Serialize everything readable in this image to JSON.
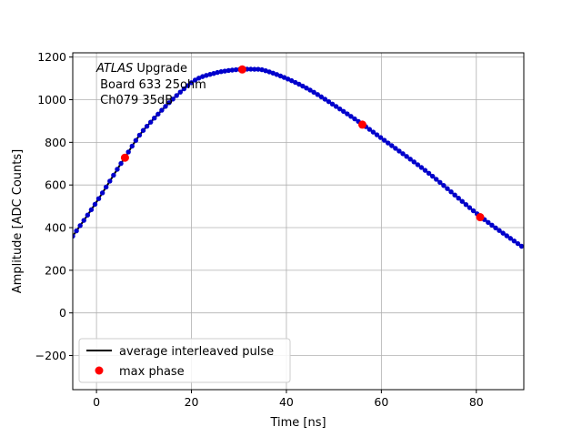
{
  "chart_data": {
    "type": "scatter",
    "xlabel": "Time [ns]",
    "ylabel": "Amplitude [ADC Counts]",
    "xlim": [
      -5,
      90
    ],
    "ylim": [
      -360,
      1220
    ],
    "xticks": [
      0,
      20,
      40,
      60,
      80
    ],
    "yticks": [
      -200,
      0,
      200,
      400,
      600,
      800,
      1000,
      1200
    ],
    "grid": true,
    "annotation": {
      "italic": "ATLAS",
      "line1_rest": " Upgrade",
      "line2": " Board 633 25ohm",
      "line3": " Ch079 35dB"
    },
    "legend": {
      "placement": "lower-left",
      "entries": [
        {
          "label": "average interleaved pulse",
          "marker": "line",
          "color": "#000000"
        },
        {
          "label": "max phase",
          "marker": "dot",
          "color": "#ff0000"
        }
      ]
    },
    "series": [
      {
        "name": "average interleaved pulse",
        "kind": "line+points",
        "color": "#000000",
        "point_color": "#0000cc",
        "x_start": -5,
        "x_end": 90,
        "x_step": 0.78125,
        "anchors": {
          "x": [
            -5,
            0,
            6,
            10,
            20,
            25,
            30,
            33,
            35,
            40,
            45,
            50,
            56,
            60,
            70,
            81,
            90
          ],
          "y": [
            360,
            520,
            730,
            860,
            1080,
            1125,
            1142,
            1143,
            1140,
            1100,
            1045,
            975,
            885,
            820,
            655,
            450,
            305
          ]
        }
      },
      {
        "name": "max phase",
        "kind": "points",
        "color": "#ff0000",
        "x": [
          6,
          30.7,
          56,
          80.8
        ],
        "y": [
          728,
          1142,
          883,
          449
        ]
      }
    ]
  }
}
